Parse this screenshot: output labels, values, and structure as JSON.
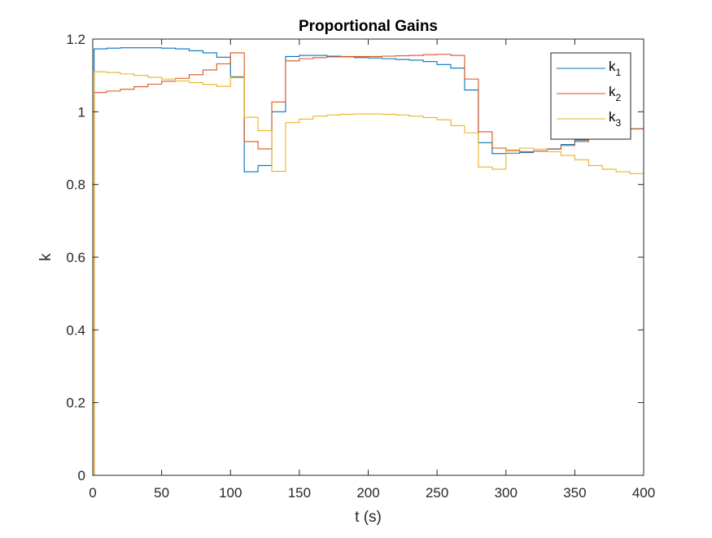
{
  "chart_data": {
    "type": "line",
    "step": true,
    "title": "Proportional Gains",
    "xlabel": "t (s)",
    "ylabel": "k",
    "xlim": [
      0,
      400
    ],
    "ylim": [
      0,
      1.2
    ],
    "xticks": [
      0,
      50,
      100,
      150,
      200,
      250,
      300,
      350,
      400
    ],
    "xtick_labels": [
      "0",
      "50",
      "100",
      "150",
      "200",
      "250",
      "300",
      "350",
      "400"
    ],
    "yticks": [
      0,
      0.2,
      0.4,
      0.6,
      0.8,
      1.0,
      1.2
    ],
    "ytick_labels": [
      "0",
      "0.2",
      "0.4",
      "0.6",
      "0.8",
      "1",
      "1.2"
    ],
    "grid": false,
    "box": true,
    "legend_position": "top-right",
    "series": [
      {
        "name": "k",
        "subscript": "1",
        "color": "#0072BD",
        "x": [
          0,
          1,
          10,
          20,
          30,
          40,
          50,
          60,
          70,
          80,
          90,
          100,
          110,
          120,
          130,
          140,
          150,
          160,
          170,
          180,
          190,
          200,
          210,
          220,
          230,
          240,
          250,
          260,
          270,
          280,
          290,
          300,
          310,
          320,
          330,
          340,
          350,
          360,
          370,
          380,
          390,
          400
        ],
        "y": [
          0,
          1.173,
          1.175,
          1.176,
          1.176,
          1.176,
          1.175,
          1.173,
          1.168,
          1.162,
          1.15,
          1.095,
          0.835,
          0.852,
          1.0,
          1.152,
          1.155,
          1.155,
          1.153,
          1.151,
          1.149,
          1.148,
          1.146,
          1.144,
          1.142,
          1.138,
          1.13,
          1.12,
          1.06,
          0.915,
          0.885,
          0.886,
          0.888,
          0.892,
          0.898,
          0.91,
          0.922,
          0.935,
          0.94,
          0.948,
          0.953,
          0.953
        ]
      },
      {
        "name": "k",
        "subscript": "2",
        "color": "#D95319",
        "x": [
          0,
          1,
          10,
          20,
          30,
          40,
          50,
          60,
          70,
          80,
          90,
          100,
          110,
          120,
          130,
          140,
          150,
          160,
          170,
          180,
          190,
          200,
          210,
          220,
          230,
          240,
          250,
          260,
          270,
          280,
          290,
          300,
          310,
          320,
          330,
          340,
          350,
          360,
          370,
          380,
          390,
          400
        ],
        "y": [
          0,
          1.053,
          1.057,
          1.062,
          1.069,
          1.076,
          1.084,
          1.092,
          1.102,
          1.115,
          1.132,
          1.162,
          0.918,
          0.898,
          1.027,
          1.14,
          1.146,
          1.149,
          1.151,
          1.152,
          1.152,
          1.152,
          1.153,
          1.154,
          1.155,
          1.157,
          1.158,
          1.155,
          1.09,
          0.945,
          0.9,
          0.893,
          0.89,
          0.892,
          0.897,
          0.907,
          0.918,
          0.93,
          0.94,
          0.948,
          0.953,
          0.953
        ]
      },
      {
        "name": "k",
        "subscript": "3",
        "color": "#EDB120",
        "x": [
          0,
          1,
          10,
          20,
          30,
          40,
          50,
          60,
          70,
          80,
          90,
          100,
          110,
          120,
          130,
          140,
          150,
          160,
          170,
          180,
          190,
          200,
          210,
          220,
          230,
          240,
          250,
          260,
          270,
          280,
          290,
          300,
          310,
          320,
          330,
          340,
          350,
          360,
          370,
          380,
          390,
          400
        ],
        "y": [
          0,
          1.11,
          1.108,
          1.104,
          1.1,
          1.095,
          1.09,
          1.085,
          1.08,
          1.075,
          1.07,
          1.097,
          0.985,
          0.948,
          0.836,
          0.97,
          0.98,
          0.988,
          0.991,
          0.993,
          0.994,
          0.994,
          0.993,
          0.991,
          0.988,
          0.984,
          0.978,
          0.962,
          0.942,
          0.848,
          0.842,
          0.895,
          0.9,
          0.897,
          0.89,
          0.88,
          0.868,
          0.852,
          0.842,
          0.835,
          0.83,
          0.828
        ]
      }
    ]
  }
}
